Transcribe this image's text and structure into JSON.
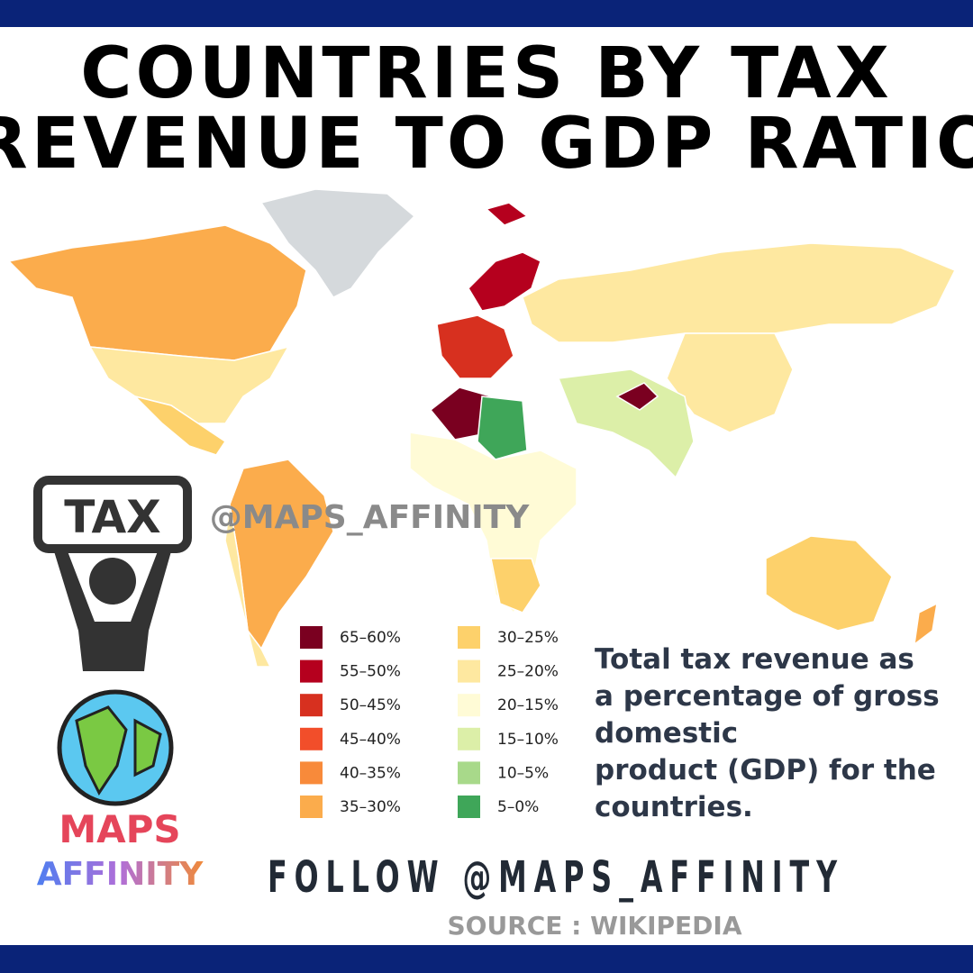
{
  "header": {
    "title_lines": [
      "COUNTRIES BY TAX",
      "REVENUE TO GDP RATIO"
    ]
  },
  "watermark": "@MAPS_AFFINITY",
  "logo": {
    "sign": "TAX",
    "brand_top": "MAPS",
    "brand_bottom": "AFFINITY"
  },
  "legend": [
    {
      "label": "65–60%",
      "color": "#7a0020"
    },
    {
      "label": "55–50%",
      "color": "#b5001e"
    },
    {
      "label": "50–45%",
      "color": "#d7301f"
    },
    {
      "label": "45–40%",
      "color": "#f24e2a"
    },
    {
      "label": "40–35%",
      "color": "#f88a3a"
    },
    {
      "label": "35–30%",
      "color": "#fbac4c"
    },
    {
      "label": "30–25%",
      "color": "#fdd16b"
    },
    {
      "label": "25–20%",
      "color": "#fee8a0"
    },
    {
      "label": "20–15%",
      "color": "#fffbd6"
    },
    {
      "label": "15–10%",
      "color": "#dcefa8"
    },
    {
      "label": "10–5%",
      "color": "#a8d98a"
    },
    {
      "label": "5–0%",
      "color": "#3fa659"
    }
  ],
  "description_lines": [
    "Total tax revenue as",
    "a percentage of gross",
    "domestic",
    "product (GDP) for the",
    "countries."
  ],
  "footer": {
    "follow": "FOLLOW @MAPS_AFFINITY",
    "source": "SOURCE : WIKIPEDIA"
  }
}
